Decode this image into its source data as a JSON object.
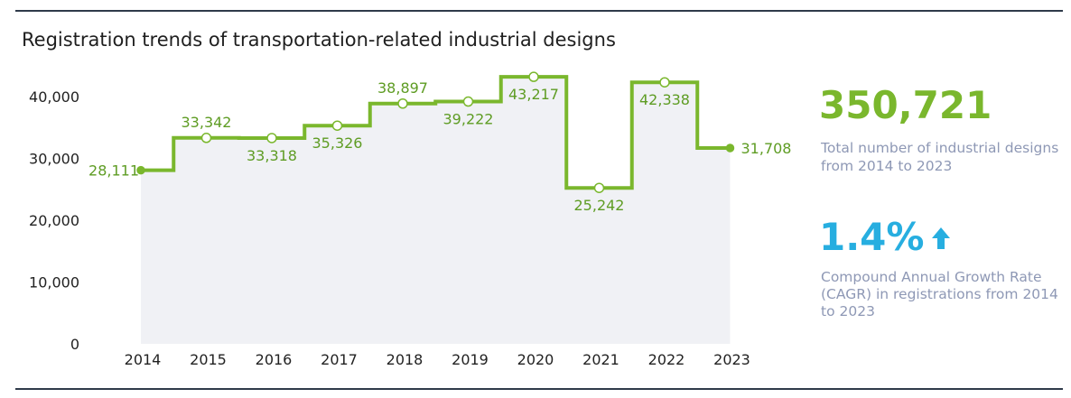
{
  "title": "Registration trends of transportation-related industrial designs",
  "colors": {
    "line": "#7ab72d",
    "label": "#5e9c23",
    "area": "#f0f1f5",
    "accent_blue": "#27aee0",
    "desc": "#8e98b5"
  },
  "chart_data": {
    "type": "line",
    "step": "mid",
    "categories": [
      "2014",
      "2015",
      "2016",
      "2017",
      "2018",
      "2019",
      "2020",
      "2021",
      "2022",
      "2023"
    ],
    "values": [
      28111,
      33342,
      33318,
      35326,
      38897,
      39222,
      43217,
      25242,
      42338,
      31708
    ],
    "value_labels": [
      "28,111",
      "33,342",
      "33,318",
      "35,326",
      "38,897",
      "39,222",
      "43,217",
      "25,242",
      "42,338",
      "31,708"
    ],
    "yticks": [
      0,
      10000,
      20000,
      30000,
      40000
    ],
    "ytick_labels": [
      "0",
      "10,000",
      "20,000",
      "30,000",
      "40,000"
    ],
    "ylim": [
      0,
      45000
    ],
    "grid": false
  },
  "stats": {
    "total_value": "350,721",
    "total_desc": "Total number of industrial designs from 2014 to 2023",
    "cagr_value": "1.4%",
    "cagr_icon": "arrow-up-icon",
    "cagr_desc": "Compound Annual Growth Rate (CAGR) in registrations from 2014 to 2023"
  }
}
